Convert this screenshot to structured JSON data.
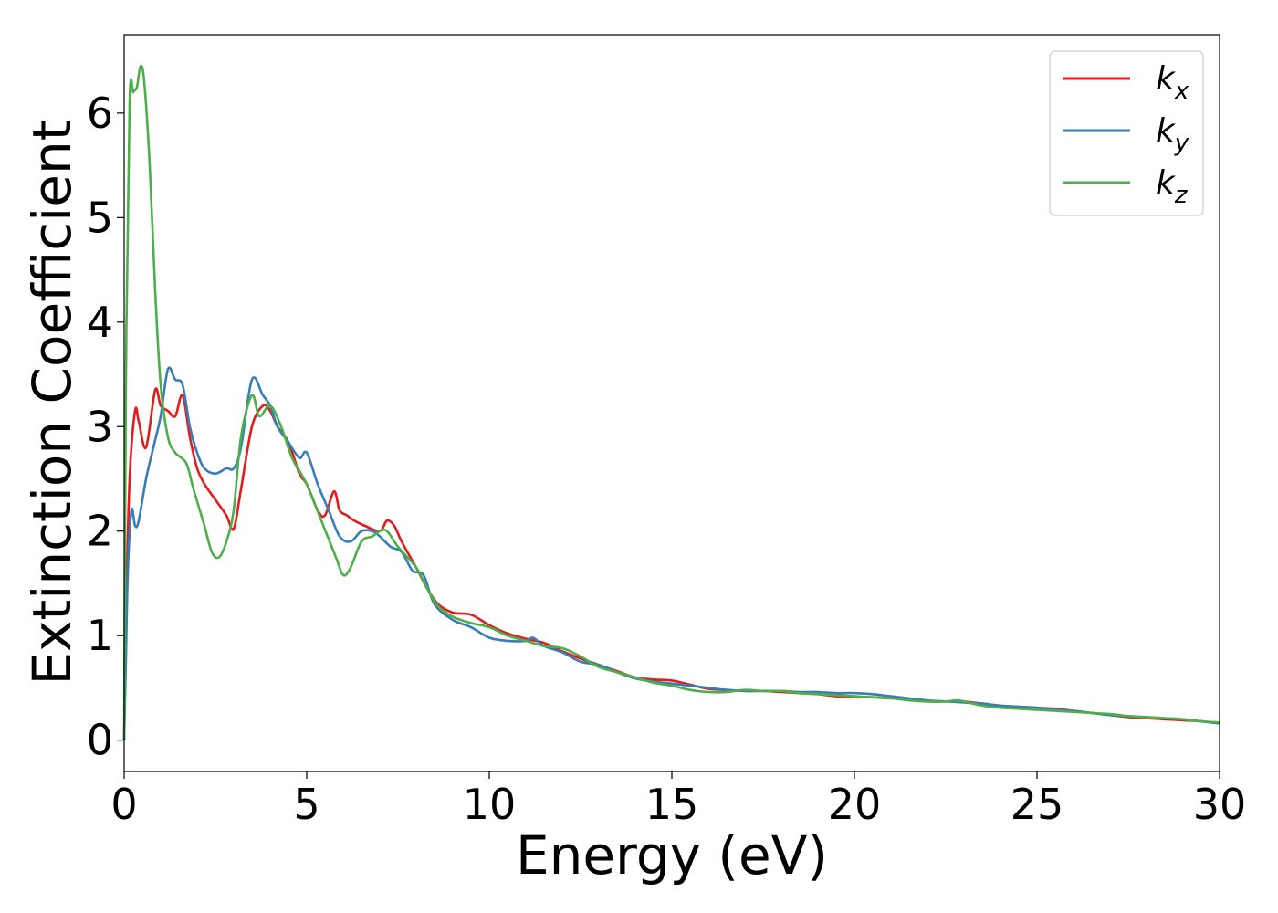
{
  "chart_data": {
    "type": "line",
    "title": "",
    "xlabel": "Energy (eV)",
    "ylabel": "Extinction Coefficient",
    "xlim": [
      0,
      30
    ],
    "ylim": [
      -0.3,
      6.75
    ],
    "xticks": [
      0,
      5,
      10,
      15,
      20,
      25,
      30
    ],
    "yticks": [
      0,
      1,
      2,
      3,
      4,
      5,
      6
    ],
    "grid": false,
    "legend_position": "top-right",
    "series": [
      {
        "name": "kx",
        "symbol": "k",
        "subscript": "x",
        "color": "#e41a1c",
        "x": [
          0,
          0.05,
          0.15,
          0.3,
          0.4,
          0.6,
          0.85,
          1.0,
          1.2,
          1.4,
          1.6,
          1.8,
          2.0,
          2.2,
          2.5,
          2.8,
          3.0,
          3.2,
          3.5,
          3.8,
          4.0,
          4.2,
          4.5,
          4.8,
          5.0,
          5.3,
          5.5,
          5.75,
          5.9,
          6.1,
          6.3,
          6.6,
          7.0,
          7.2,
          7.4,
          7.6,
          8.0,
          8.3,
          8.6,
          9.0,
          9.5,
          10.0,
          10.5,
          11.0,
          11.5,
          12.0,
          12.5,
          13.0,
          13.5,
          14.0,
          14.5,
          15.0,
          15.5,
          16.0,
          16.5,
          17.0,
          17.5,
          18.0,
          18.5,
          19.0,
          19.5,
          20.0,
          20.5,
          21.0,
          21.5,
          22.0,
          22.5,
          22.8,
          23.0,
          23.5,
          24.0,
          24.5,
          25.0,
          25.5,
          26.0,
          26.5,
          27.0,
          27.5,
          28.0,
          28.5,
          29.0,
          29.5,
          30.0
        ],
        "values": [
          0.0,
          1.2,
          2.5,
          3.15,
          3.05,
          2.8,
          3.35,
          3.2,
          3.15,
          3.1,
          3.3,
          2.9,
          2.6,
          2.45,
          2.3,
          2.15,
          2.02,
          2.4,
          3.0,
          3.2,
          3.15,
          3.0,
          2.85,
          2.55,
          2.45,
          2.2,
          2.15,
          2.38,
          2.2,
          2.15,
          2.1,
          2.05,
          2.0,
          2.1,
          2.05,
          1.9,
          1.65,
          1.45,
          1.3,
          1.22,
          1.2,
          1.1,
          1.02,
          0.97,
          0.93,
          0.85,
          0.78,
          0.72,
          0.66,
          0.6,
          0.58,
          0.57,
          0.53,
          0.49,
          0.48,
          0.47,
          0.47,
          0.46,
          0.45,
          0.44,
          0.42,
          0.41,
          0.41,
          0.4,
          0.39,
          0.37,
          0.37,
          0.38,
          0.37,
          0.35,
          0.33,
          0.32,
          0.31,
          0.3,
          0.28,
          0.26,
          0.24,
          0.22,
          0.21,
          0.2,
          0.19,
          0.18,
          0.16
        ]
      },
      {
        "name": "ky",
        "symbol": "k",
        "subscript": "y",
        "color": "#377eb8",
        "x": [
          0,
          0.05,
          0.1,
          0.2,
          0.3,
          0.4,
          0.6,
          0.8,
          1.0,
          1.2,
          1.4,
          1.6,
          1.8,
          2.0,
          2.2,
          2.5,
          2.8,
          3.0,
          3.2,
          3.5,
          3.8,
          4.0,
          4.2,
          4.5,
          4.8,
          5.0,
          5.3,
          5.6,
          5.9,
          6.2,
          6.5,
          6.8,
          7.0,
          7.3,
          7.6,
          7.9,
          8.2,
          8.5,
          9.0,
          9.5,
          10.0,
          10.5,
          11.0,
          11.2,
          11.5,
          12.0,
          12.5,
          13.0,
          13.5,
          14.0,
          14.5,
          15.0,
          15.5,
          16.0,
          16.5,
          17.0,
          17.5,
          18.0,
          18.5,
          19.0,
          19.5,
          20.0,
          20.5,
          21.0,
          21.5,
          22.0,
          22.5,
          23.0,
          23.5,
          24.0,
          24.5,
          25.0,
          25.5,
          26.0,
          26.5,
          27.0,
          27.5,
          28.0,
          28.5,
          29.0,
          29.5,
          30.0
        ],
        "values": [
          0.0,
          0.8,
          1.6,
          2.2,
          2.05,
          2.1,
          2.5,
          2.8,
          3.1,
          3.55,
          3.45,
          3.4,
          3.0,
          2.75,
          2.6,
          2.55,
          2.6,
          2.6,
          2.8,
          3.45,
          3.3,
          3.2,
          3.0,
          2.85,
          2.7,
          2.75,
          2.45,
          2.2,
          1.95,
          1.9,
          2.0,
          2.0,
          1.95,
          1.85,
          1.8,
          1.62,
          1.58,
          1.3,
          1.15,
          1.08,
          0.98,
          0.95,
          0.95,
          0.98,
          0.9,
          0.84,
          0.75,
          0.72,
          0.65,
          0.59,
          0.56,
          0.54,
          0.52,
          0.5,
          0.48,
          0.47,
          0.47,
          0.47,
          0.46,
          0.46,
          0.45,
          0.45,
          0.44,
          0.42,
          0.4,
          0.38,
          0.37,
          0.36,
          0.35,
          0.33,
          0.32,
          0.31,
          0.29,
          0.28,
          0.26,
          0.24,
          0.23,
          0.22,
          0.21,
          0.2,
          0.18,
          0.16
        ]
      },
      {
        "name": "kz",
        "symbol": "k",
        "subscript": "z",
        "color": "#4daf4a",
        "x": [
          0,
          0.05,
          0.15,
          0.25,
          0.35,
          0.45,
          0.55,
          0.7,
          0.85,
          1.0,
          1.2,
          1.4,
          1.7,
          1.9,
          2.2,
          2.4,
          2.6,
          2.8,
          3.0,
          3.2,
          3.5,
          3.7,
          4.0,
          4.3,
          4.6,
          5.0,
          5.4,
          5.8,
          6.0,
          6.2,
          6.5,
          6.8,
          7.0,
          7.2,
          7.5,
          8.0,
          8.3,
          8.6,
          9.0,
          9.5,
          10.0,
          10.5,
          11.0,
          11.5,
          12.0,
          12.5,
          13.0,
          13.5,
          14.0,
          14.5,
          15.0,
          15.5,
          16.0,
          16.5,
          17.0,
          17.5,
          18.0,
          18.5,
          19.0,
          19.5,
          20.0,
          20.5,
          21.0,
          21.5,
          22.0,
          22.5,
          22.8,
          23.0,
          23.5,
          24.0,
          24.5,
          25.0,
          25.5,
          26.0,
          26.5,
          27.0,
          27.5,
          28.0,
          28.5,
          29.0,
          29.5,
          30.0
        ],
        "values": [
          0.0,
          3.5,
          6.1,
          6.2,
          6.25,
          6.45,
          6.3,
          5.5,
          4.3,
          3.4,
          2.9,
          2.75,
          2.65,
          2.4,
          2.05,
          1.8,
          1.75,
          1.9,
          2.2,
          2.9,
          3.3,
          3.1,
          3.2,
          3.0,
          2.7,
          2.45,
          2.1,
          1.75,
          1.58,
          1.65,
          1.9,
          1.95,
          2.0,
          2.0,
          1.85,
          1.65,
          1.45,
          1.28,
          1.18,
          1.12,
          1.08,
          1.0,
          0.95,
          0.9,
          0.88,
          0.8,
          0.7,
          0.65,
          0.6,
          0.55,
          0.52,
          0.48,
          0.46,
          0.46,
          0.48,
          0.47,
          0.47,
          0.45,
          0.44,
          0.43,
          0.42,
          0.41,
          0.4,
          0.38,
          0.37,
          0.37,
          0.38,
          0.37,
          0.33,
          0.31,
          0.3,
          0.29,
          0.28,
          0.27,
          0.26,
          0.25,
          0.23,
          0.22,
          0.21,
          0.2,
          0.18,
          0.17
        ]
      }
    ]
  }
}
